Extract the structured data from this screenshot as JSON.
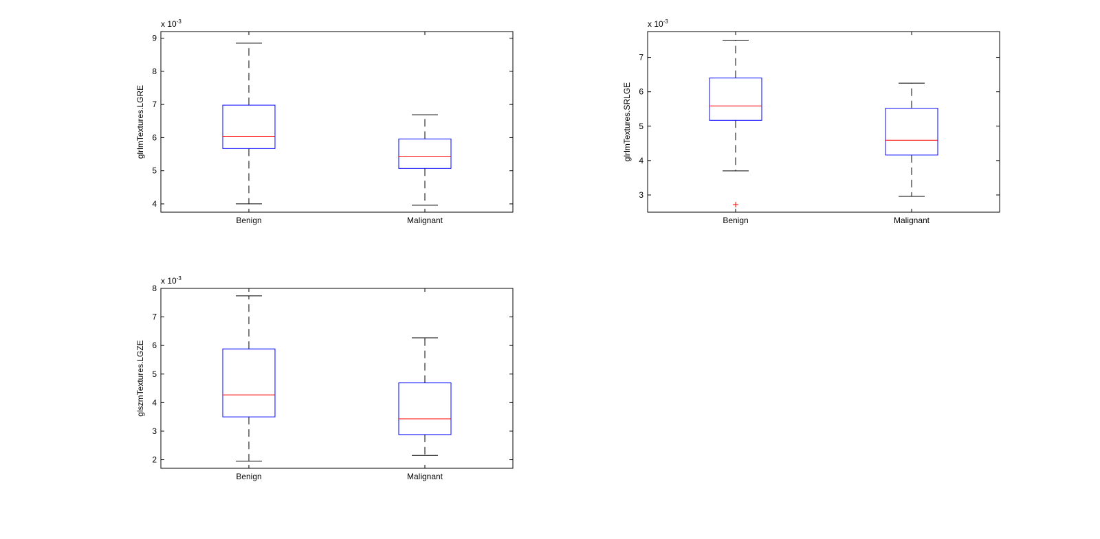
{
  "chart_data": [
    {
      "type": "box",
      "ylabel": "glrlmTextures.LGRE",
      "scale_prefix": "x 10",
      "scale_exponent": "-3",
      "ylim": [
        3.75,
        9.2
      ],
      "yticks": [
        4,
        5,
        6,
        7,
        8,
        9
      ],
      "categories": [
        "Benign",
        "Malignant"
      ],
      "boxes": [
        {
          "whisker_low": 4.0,
          "q1": 5.67,
          "median": 6.04,
          "q3": 6.98,
          "whisker_high": 8.85,
          "outliers": []
        },
        {
          "whisker_low": 3.96,
          "q1": 5.07,
          "median": 5.44,
          "q3": 5.96,
          "whisker_high": 6.69,
          "outliers": []
        }
      ]
    },
    {
      "type": "box",
      "ylabel": "glrlmTextures.SRLGE",
      "scale_prefix": "x 10",
      "scale_exponent": "-3",
      "ylim": [
        2.5,
        7.75
      ],
      "yticks": [
        3,
        4,
        5,
        6,
        7
      ],
      "categories": [
        "Benign",
        "Malignant"
      ],
      "boxes": [
        {
          "whisker_low": 3.7,
          "q1": 5.17,
          "median": 5.59,
          "q3": 6.4,
          "whisker_high": 7.5,
          "outliers": [
            2.72
          ]
        },
        {
          "whisker_low": 2.96,
          "q1": 4.16,
          "median": 4.59,
          "q3": 5.52,
          "whisker_high": 6.25,
          "outliers": []
        }
      ]
    },
    {
      "type": "box",
      "ylabel": "glszmTextures.LGZE",
      "scale_prefix": "x 10",
      "scale_exponent": "-3",
      "ylim": [
        1.7,
        8.0
      ],
      "yticks": [
        2,
        3,
        4,
        5,
        6,
        7,
        8
      ],
      "categories": [
        "Benign",
        "Malignant"
      ],
      "boxes": [
        {
          "whisker_low": 1.95,
          "q1": 3.5,
          "median": 4.27,
          "q3": 5.88,
          "whisker_high": 7.74,
          "outliers": []
        },
        {
          "whisker_low": 2.15,
          "q1": 2.88,
          "median": 3.43,
          "q3": 4.69,
          "whisker_high": 6.27,
          "outliers": []
        }
      ]
    }
  ],
  "colors": {
    "box": "#0000ff",
    "median": "#ff0000",
    "whisker": "#000000",
    "outlier": "#ff0000",
    "axis": "#000000"
  }
}
